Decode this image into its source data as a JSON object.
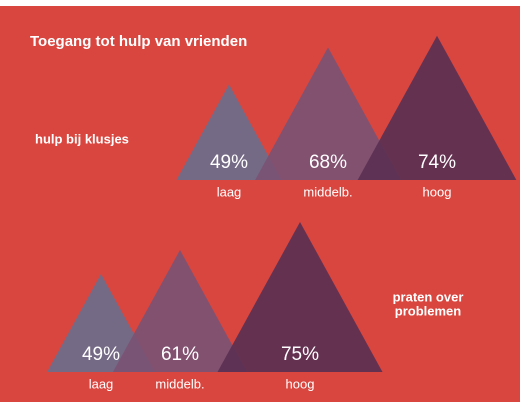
{
  "chart_data": [
    {
      "type": "triangle",
      "title": "Toegang tot hulp van vrienden",
      "label_lines": [
        "hulp bij klusjes"
      ],
      "categories": [
        "laag",
        "middelb.",
        "hoog"
      ],
      "values": [
        49,
        68,
        74
      ],
      "value_labels": [
        "49%",
        "68%",
        "74%"
      ],
      "colors": [
        "#6d6e8c",
        "#7b5274",
        "#5b3052"
      ]
    },
    {
      "type": "triangle",
      "label_lines": [
        "praten over",
        "problemen"
      ],
      "categories": [
        "laag",
        "middelb.",
        "hoog"
      ],
      "values": [
        49,
        61,
        75
      ],
      "value_labels": [
        "49%",
        "61%",
        "75%"
      ],
      "colors": [
        "#6d6e8c",
        "#7b5274",
        "#5b3052"
      ]
    }
  ]
}
